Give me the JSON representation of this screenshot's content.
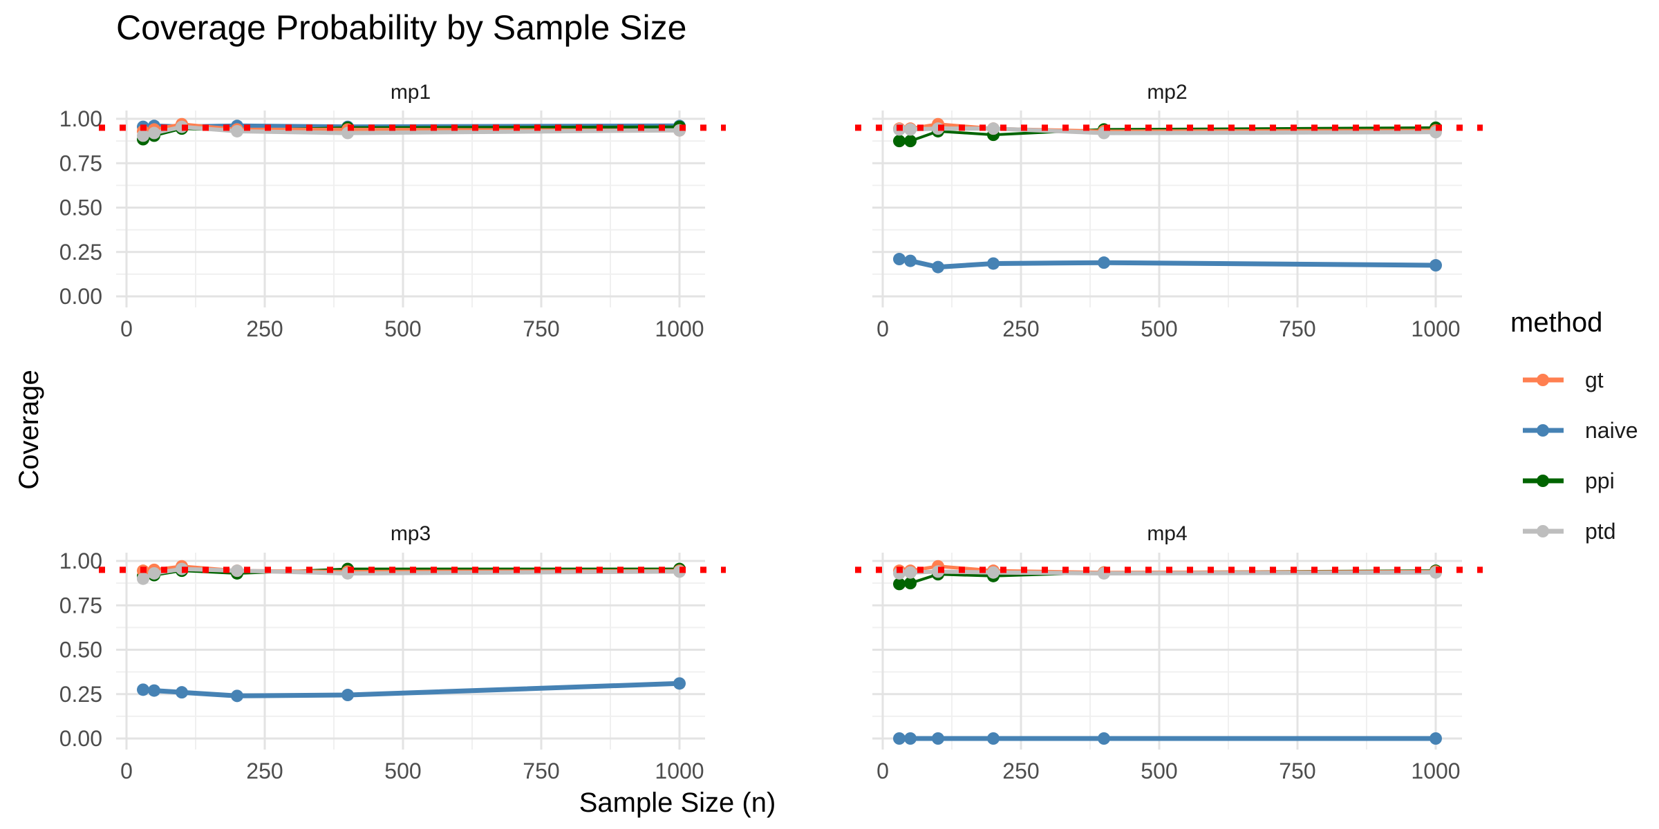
{
  "chart_data": {
    "type": "line",
    "title": "Coverage Probability by Sample Size",
    "xlabel": "Sample Size (n)",
    "ylabel": "Coverage",
    "x": [
      30,
      50,
      100,
      200,
      400,
      1000
    ],
    "xlim": [
      0,
      1000
    ],
    "ylim": [
      0,
      1
    ],
    "xticks": [
      "0",
      "250",
      "500",
      "750",
      "1000"
    ],
    "yticks": [
      "0.00",
      "0.25",
      "0.50",
      "0.75",
      "1.00"
    ],
    "grid": true,
    "reference_line": {
      "y": 0.95,
      "color": "#ff0000",
      "style": "dotted"
    },
    "legend": {
      "title": "method",
      "position": "right",
      "entries": [
        {
          "name": "gt",
          "color": "#ff7f50"
        },
        {
          "name": "naive",
          "color": "#4682b4"
        },
        {
          "name": "ppi",
          "color": "#006400"
        },
        {
          "name": "ptd",
          "color": "#bebebe"
        }
      ]
    },
    "panels": [
      {
        "label": "mp1",
        "series": [
          {
            "name": "gt",
            "values": [
              0.93,
              0.94,
              0.97,
              0.94,
              0.94,
              0.935
            ]
          },
          {
            "name": "naive",
            "values": [
              0.955,
              0.96,
              0.955,
              0.96,
              0.955,
              0.96
            ]
          },
          {
            "name": "ppi",
            "values": [
              0.885,
              0.905,
              0.945,
              0.935,
              0.95,
              0.955
            ]
          },
          {
            "name": "ptd",
            "values": [
              0.905,
              0.92,
              0.955,
              0.93,
              0.92,
              0.935
            ]
          }
        ]
      },
      {
        "label": "mp2",
        "series": [
          {
            "name": "gt",
            "values": [
              0.945,
              0.945,
              0.97,
              0.945,
              0.93,
              0.935
            ]
          },
          {
            "name": "naive",
            "values": [
              0.21,
              0.2,
              0.165,
              0.185,
              0.19,
              0.175
            ]
          },
          {
            "name": "ppi",
            "values": [
              0.875,
              0.875,
              0.93,
              0.91,
              0.94,
              0.95
            ]
          },
          {
            "name": "ptd",
            "values": [
              0.94,
              0.94,
              0.945,
              0.945,
              0.92,
              0.925
            ]
          }
        ]
      },
      {
        "label": "mp3",
        "series": [
          {
            "name": "gt",
            "values": [
              0.945,
              0.95,
              0.97,
              0.945,
              0.94,
              0.945
            ]
          },
          {
            "name": "naive",
            "values": [
              0.275,
              0.27,
              0.26,
              0.24,
              0.245,
              0.31
            ]
          },
          {
            "name": "ppi",
            "values": [
              0.915,
              0.92,
              0.945,
              0.93,
              0.955,
              0.955
            ]
          },
          {
            "name": "ptd",
            "values": [
              0.9,
              0.93,
              0.955,
              0.945,
              0.93,
              0.94
            ]
          }
        ]
      },
      {
        "label": "mp4",
        "series": [
          {
            "name": "gt",
            "values": [
              0.945,
              0.945,
              0.97,
              0.945,
              0.935,
              0.94
            ]
          },
          {
            "name": "naive",
            "values": [
              0.0,
              0.0,
              0.0,
              0.0,
              0.0,
              0.0
            ]
          },
          {
            "name": "ppi",
            "values": [
              0.87,
              0.875,
              0.925,
              0.915,
              0.935,
              0.945
            ]
          },
          {
            "name": "ptd",
            "values": [
              0.93,
              0.935,
              0.94,
              0.935,
              0.93,
              0.935
            ]
          }
        ]
      }
    ]
  }
}
